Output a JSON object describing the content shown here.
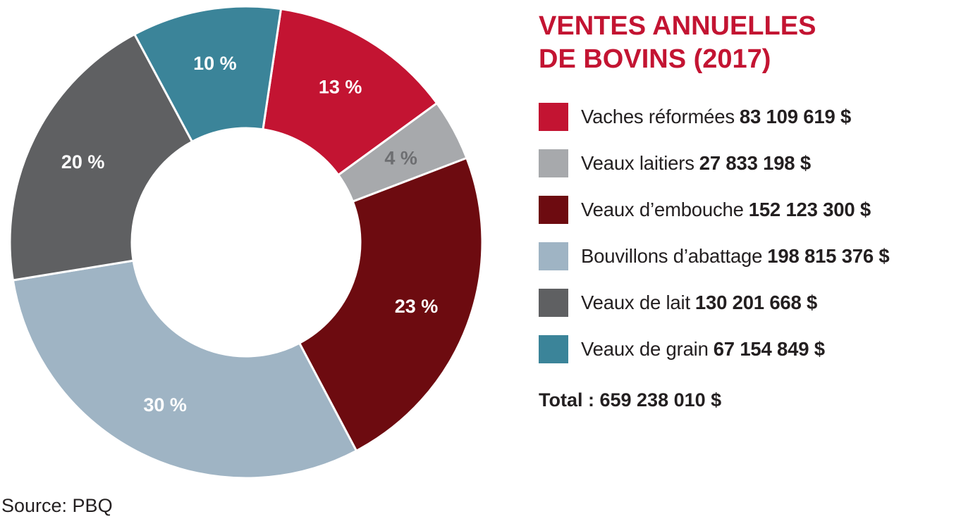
{
  "chart_data": {
    "type": "pie",
    "title_lines": [
      "VENTES ANNUELLES",
      "DE BOVINS (2017)"
    ],
    "slices": [
      {
        "name": "Vaches réformées",
        "value": 83109619,
        "value_label": "83 109 619 $",
        "percent_label": "13 %",
        "color": "#c31432",
        "label_color": "#ffffff"
      },
      {
        "name": "Veaux laitiers",
        "value": 27833198,
        "value_label": "27 833 198 $",
        "percent_label": "4 %",
        "color": "#a7a9ac",
        "label_color": "#6d6e71"
      },
      {
        "name": "Veaux d’embouche",
        "value": 152123300,
        "value_label": "152 123 300 $",
        "percent_label": "23 %",
        "color": "#6d0b10",
        "label_color": "#ffffff"
      },
      {
        "name": "Bouvillons d’abattage",
        "value": 198815376,
        "value_label": "198 815 376 $",
        "percent_label": "30 %",
        "color": "#9fb4c4",
        "label_color": "#ffffff"
      },
      {
        "name": "Veaux de lait",
        "value": 130201668,
        "value_label": "130 201 668 $",
        "percent_label": "20 %",
        "color": "#5f6062",
        "label_color": "#ffffff"
      },
      {
        "name": "Veaux de grain",
        "value": 67154849,
        "value_label": "67 154 849 $",
        "percent_label": "10 %",
        "color": "#3b8499",
        "label_color": "#ffffff"
      }
    ],
    "total_label": "Total : 659 238 010 $",
    "source": "Source: PBQ",
    "legend_placement": "right"
  }
}
